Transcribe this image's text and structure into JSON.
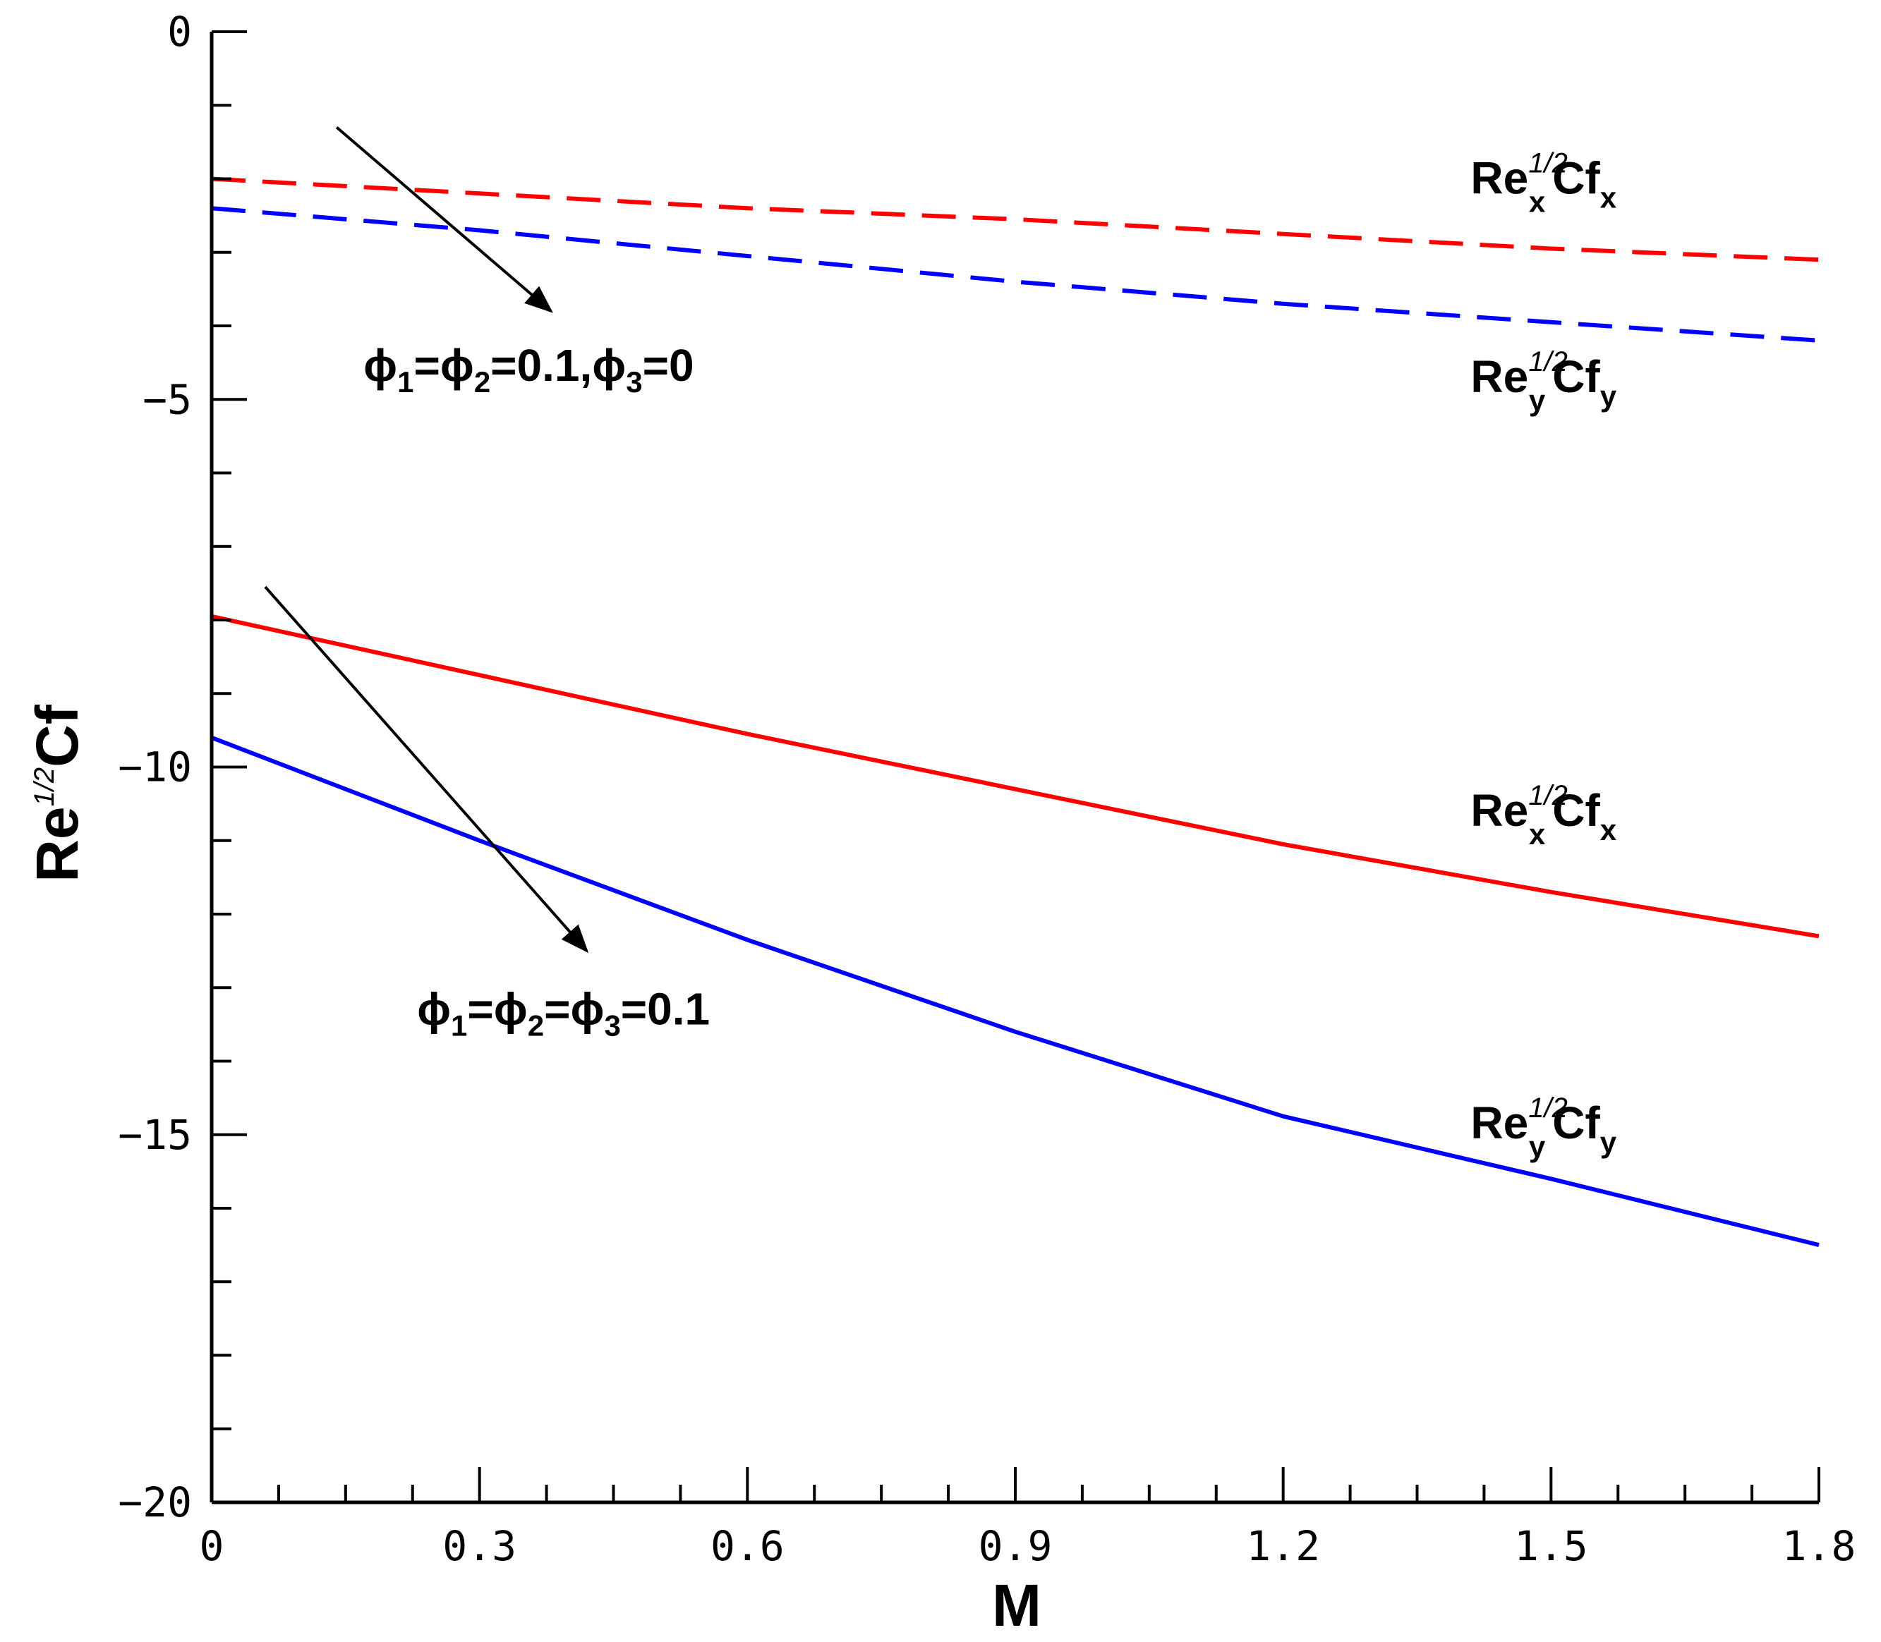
{
  "chart_data": {
    "type": "line",
    "title": "",
    "xlabel": "M",
    "ylabel": {
      "base": "Re",
      "sup": "1/2",
      "tail": "Cf"
    },
    "xlim": [
      0,
      1.8
    ],
    "ylim": [
      -20,
      0
    ],
    "x_ticks": [
      {
        "value": 0,
        "label": "0"
      },
      {
        "value": 0.3,
        "label": "0.3"
      },
      {
        "value": 0.6,
        "label": "0.6"
      },
      {
        "value": 0.9,
        "label": "0.9"
      },
      {
        "value": 1.2,
        "label": "1.2"
      },
      {
        "value": 1.5,
        "label": "1.5"
      },
      {
        "value": 1.8,
        "label": "1.8"
      }
    ],
    "y_ticks": [
      {
        "value": 0,
        "label": "0"
      },
      {
        "value": -5,
        "label": "-5"
      },
      {
        "value": -10,
        "label": "-10"
      },
      {
        "value": -15,
        "label": "-15"
      },
      {
        "value": -20,
        "label": "-20"
      }
    ],
    "x": [
      0,
      0.3,
      0.6,
      0.9,
      1.2,
      1.5,
      1.8
    ],
    "series": [
      {
        "name": "Re_x^{1/2} Cf_x (phi1=phi2=0.1, phi3=0)",
        "color": "#ff0000",
        "dash": "dashed",
        "values": [
          -2.0,
          -2.2,
          -2.4,
          -2.55,
          -2.75,
          -2.95,
          -3.1
        ]
      },
      {
        "name": "Re_y^{1/2} Cf_y (phi1=phi2=0.1, phi3=0)",
        "color": "#0000ff",
        "dash": "dashed",
        "values": [
          -2.4,
          -2.7,
          -3.05,
          -3.4,
          -3.7,
          -3.95,
          -4.2
        ]
      },
      {
        "name": "Re_x^{1/2} Cf_x (phi1=phi2=phi3=0.1)",
        "color": "#ff0000",
        "dash": "solid",
        "values": [
          -7.95,
          -8.75,
          -9.55,
          -10.3,
          -11.05,
          -11.7,
          -12.3
        ]
      },
      {
        "name": "Re_y^{1/2} Cf_y (phi1=phi2=phi3=0.1)",
        "color": "#0000ff",
        "dash": "solid",
        "values": [
          -9.6,
          -11.0,
          -12.35,
          -13.6,
          -14.75,
          -15.6,
          -16.5
        ]
      }
    ],
    "annotations": [
      {
        "id": "label-dashed-cfx",
        "x": 1.41,
        "y": -2.2,
        "base": "Re",
        "sup": "1/2",
        "sub": "x",
        "tail": "Cf",
        "tailsub": "x"
      },
      {
        "id": "label-dashed-cfy",
        "x": 1.41,
        "y": -4.9,
        "base": "Re",
        "sup": "1/2",
        "sub": "y",
        "tail": "Cf",
        "tailsub": "y"
      },
      {
        "id": "label-solid-cfx",
        "x": 1.41,
        "y": -10.8,
        "base": "Re",
        "sup": "1/2",
        "sub": "x",
        "tail": "Cf",
        "tailsub": "x"
      },
      {
        "id": "label-solid-cfy",
        "x": 1.41,
        "y": -15.05,
        "base": "Re",
        "sup": "1/2",
        "sub": "y",
        "tail": "Cf",
        "tailsub": "y"
      }
    ],
    "case_labels": [
      {
        "id": "case-label-phi3-zero",
        "x": 0.17,
        "y": -4.75,
        "parts": [
          {
            "t": "ϕ"
          },
          {
            "t": "1",
            "s": "sub"
          },
          {
            "t": "=ϕ"
          },
          {
            "t": "2",
            "s": "sub"
          },
          {
            "t": "=0.1,ϕ"
          },
          {
            "t": "3",
            "s": "sub"
          },
          {
            "t": "=0"
          }
        ]
      },
      {
        "id": "case-label-phi3-nonzero",
        "x": 0.23,
        "y": -13.5,
        "parts": [
          {
            "t": "ϕ"
          },
          {
            "t": "1",
            "s": "sub"
          },
          {
            "t": "=ϕ"
          },
          {
            "t": "2",
            "s": "sub"
          },
          {
            "t": "=ϕ"
          },
          {
            "t": "3",
            "s": "sub"
          },
          {
            "t": "=0.1"
          }
        ]
      }
    ],
    "arrows": [
      {
        "id": "arrow-dashed-group",
        "from": [
          0.14,
          -1.3
        ],
        "to": [
          0.38,
          -3.8
        ]
      },
      {
        "id": "arrow-solid-group",
        "from": [
          0.06,
          -7.55
        ],
        "to": [
          0.42,
          -12.5
        ]
      }
    ]
  }
}
